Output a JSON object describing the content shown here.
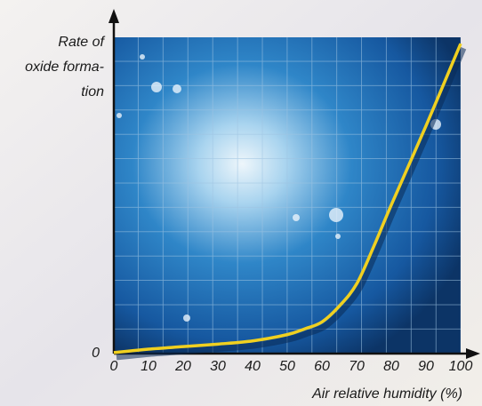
{
  "chart_data": {
    "type": "line",
    "ylabel": [
      "Rate of",
      "oxide forma-",
      "tion"
    ],
    "xlabel": "Air relative humidity (%)",
    "x": [
      0,
      10,
      20,
      30,
      40,
      50,
      55,
      60,
      65,
      70,
      75,
      80,
      90,
      100
    ],
    "series": [
      {
        "color": "#f0d020",
        "values": [
          0.3,
          1.4,
          2.2,
          3,
          4,
          6,
          7.8,
          10,
          15,
          22,
          34,
          47,
          72,
          98
        ]
      }
    ],
    "xlim": [
      0,
      100
    ],
    "xticks": [
      0,
      10,
      20,
      30,
      40,
      50,
      60,
      70,
      80,
      90,
      100
    ],
    "ylim": [
      0,
      100
    ],
    "yticks": [
      0
    ]
  }
}
